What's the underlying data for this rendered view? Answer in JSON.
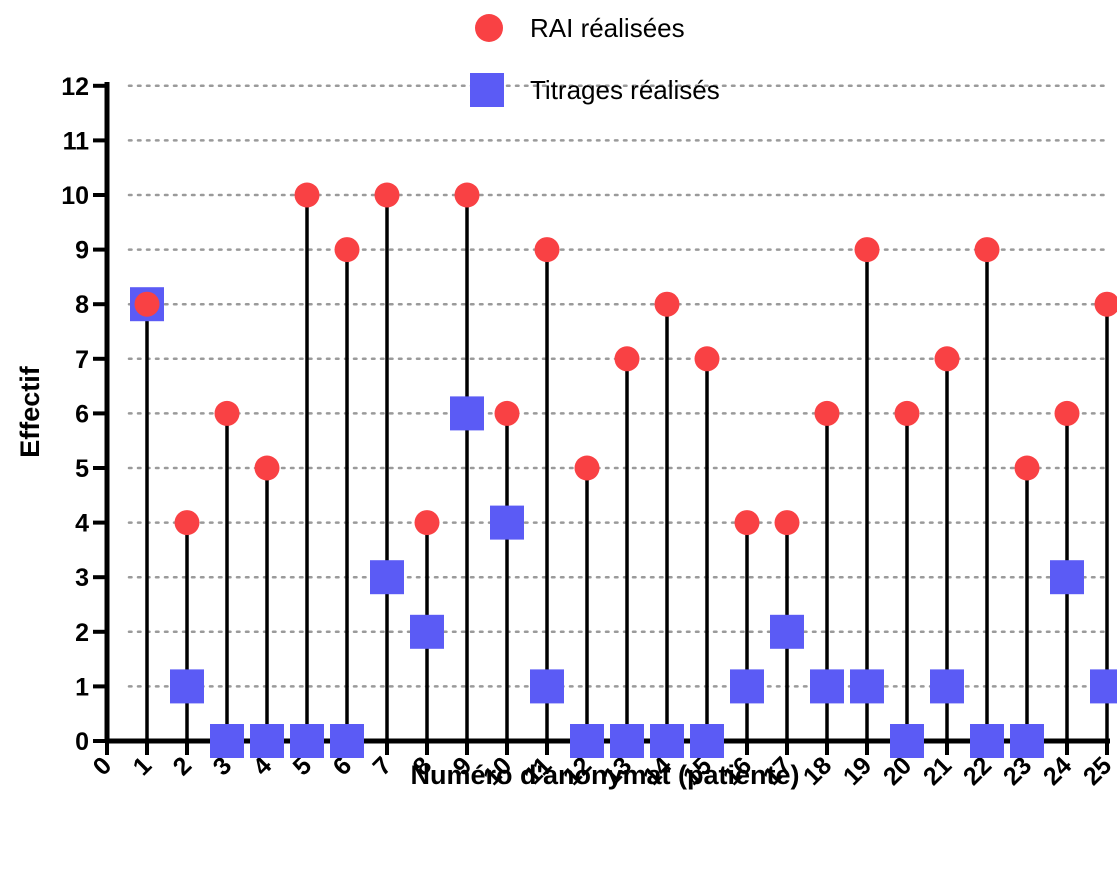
{
  "chart_data": {
    "type": "scatter",
    "title": "",
    "xlabel": "Numéro d'anonymat (patiente)",
    "ylabel": "Effectif",
    "xlim": [
      0,
      25
    ],
    "ylim": [
      0,
      12
    ],
    "x_ticks": [
      0,
      1,
      2,
      3,
      4,
      5,
      6,
      7,
      8,
      9,
      10,
      11,
      12,
      13,
      14,
      15,
      16,
      17,
      18,
      19,
      20,
      21,
      22,
      23,
      24,
      25
    ],
    "y_ticks": [
      0,
      1,
      2,
      3,
      4,
      5,
      6,
      7,
      8,
      9,
      10,
      11,
      12
    ],
    "grid": "horizontal dotted",
    "legend_position": "top",
    "x": [
      1,
      2,
      3,
      4,
      5,
      6,
      7,
      8,
      9,
      10,
      11,
      12,
      13,
      14,
      15,
      16,
      17,
      18,
      19,
      20,
      21,
      22,
      23,
      24,
      25
    ],
    "series": [
      {
        "name": "RAI réalisées",
        "marker": "circle",
        "color": "#f94144",
        "values": [
          8,
          4,
          6,
          5,
          10,
          9,
          10,
          4,
          10,
          6,
          9,
          5,
          7,
          8,
          7,
          4,
          4,
          6,
          9,
          6,
          7,
          9,
          5,
          6,
          8
        ]
      },
      {
        "name": "Titrages réalisés",
        "marker": "square",
        "color": "#5b5bf5",
        "values": [
          8,
          1,
          0,
          0,
          0,
          0,
          3,
          2,
          6,
          4,
          1,
          0,
          0,
          0,
          0,
          1,
          2,
          1,
          1,
          0,
          1,
          0,
          0,
          3,
          1
        ]
      }
    ]
  }
}
